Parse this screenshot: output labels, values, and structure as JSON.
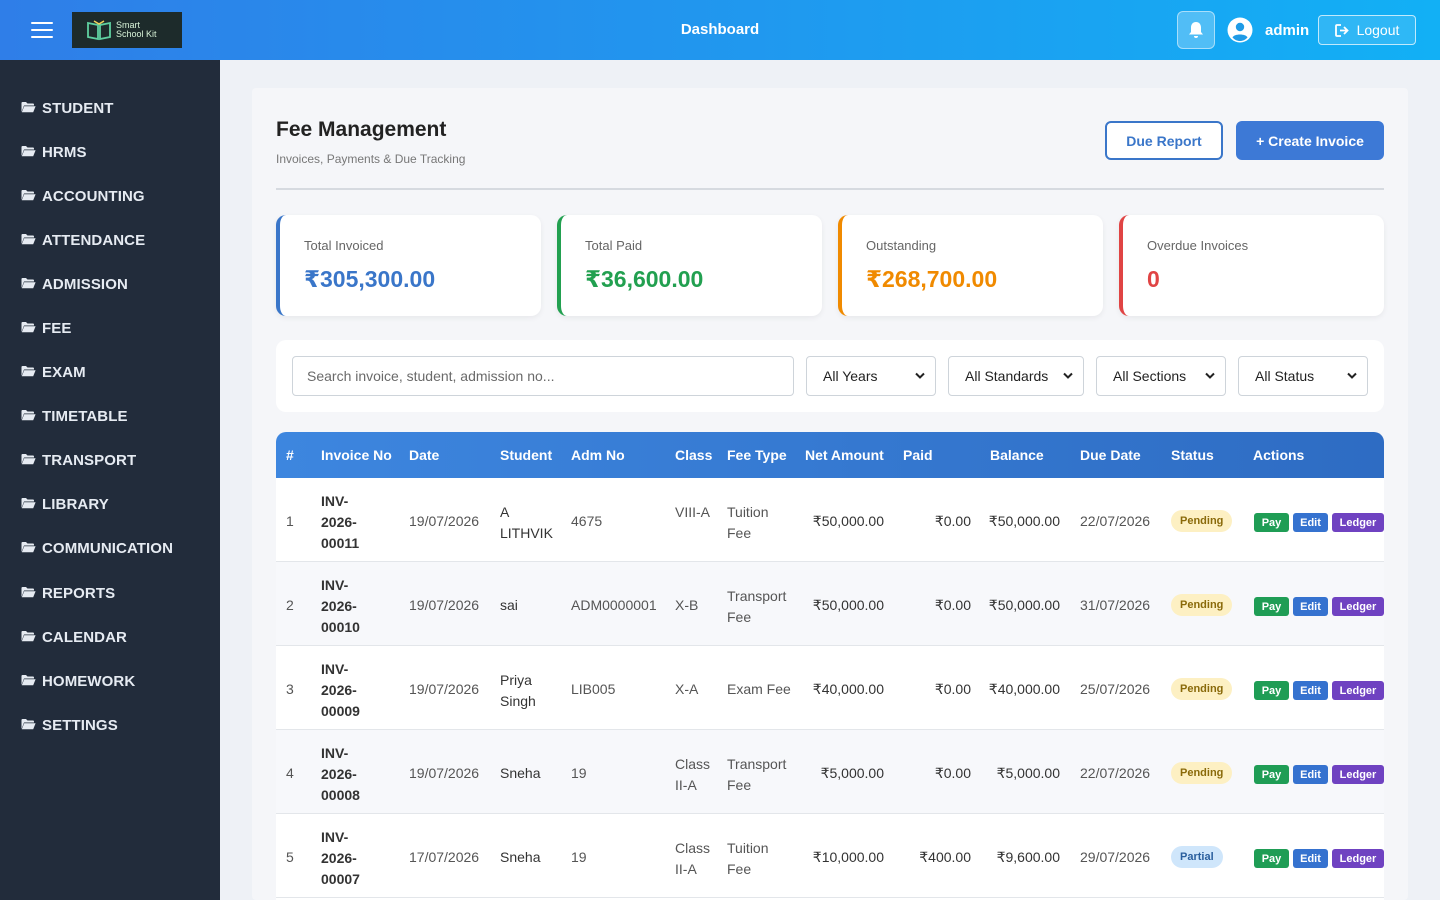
{
  "header": {
    "logo_line1": "Smart",
    "logo_line2": "School Kit",
    "title": "Dashboard",
    "user_name": "admin",
    "logout_label": "Logout"
  },
  "sidebar": {
    "items": [
      {
        "label": "STUDENT"
      },
      {
        "label": "HRMS"
      },
      {
        "label": "ACCOUNTING"
      },
      {
        "label": "ATTENDANCE"
      },
      {
        "label": "ADMISSION"
      },
      {
        "label": "FEE"
      },
      {
        "label": "EXAM"
      },
      {
        "label": "TIMETABLE"
      },
      {
        "label": "TRANSPORT"
      },
      {
        "label": "LIBRARY"
      },
      {
        "label": "COMMUNICATION"
      },
      {
        "label": "REPORTS"
      },
      {
        "label": "CALENDAR"
      },
      {
        "label": "HOMEWORK"
      },
      {
        "label": "SETTINGS"
      }
    ]
  },
  "page": {
    "title": "Fee Management",
    "subtitle": "Invoices, Payments & Due Tracking",
    "due_report_label": "Due Report",
    "create_invoice_label": "+ Create Invoice"
  },
  "stats": [
    {
      "label": "Total Invoiced",
      "value": "₹305,300.00",
      "color": "#3a76c9"
    },
    {
      "label": "Total Paid",
      "value": "₹36,600.00",
      "color": "#22a050"
    },
    {
      "label": "Outstanding",
      "value": "₹268,700.00",
      "color": "#f08a00"
    },
    {
      "label": "Overdue Invoices",
      "value": "0",
      "color": "#e04444"
    }
  ],
  "filters": {
    "search_placeholder": "Search invoice, student, admission no...",
    "year": "All Years",
    "standard": "All Standards",
    "section": "All Sections",
    "status": "All Status"
  },
  "table": {
    "headers": {
      "num": "#",
      "invoice_no": "Invoice No",
      "date": "Date",
      "student": "Student",
      "adm_no": "Adm No",
      "class": "Class",
      "fee_type": "Fee Type",
      "net_amount": "Net Amount",
      "paid": "Paid",
      "balance": "Balance",
      "due_date": "Due Date",
      "status": "Status",
      "actions": "Actions"
    },
    "actions": {
      "pay": "Pay",
      "edit": "Edit",
      "ledger": "Ledger"
    },
    "rows": [
      {
        "num": "1",
        "inv1": "INV-",
        "inv2": "2026-",
        "inv3": "00011",
        "date": "19/07/2026",
        "student": "A LITHVIK",
        "adm": "4675",
        "class": "VIII-A",
        "fee": "Tuition Fee",
        "net": "₹50,000.00",
        "paid": "₹0.00",
        "balance": "₹50,000.00",
        "due": "22/07/2026",
        "status": "Pending"
      },
      {
        "num": "2",
        "inv1": "INV-",
        "inv2": "2026-",
        "inv3": "00010",
        "date": "19/07/2026",
        "student": "sai",
        "adm": "ADM0000001",
        "class": "X-B",
        "fee": "Transport Fee",
        "net": "₹50,000.00",
        "paid": "₹0.00",
        "balance": "₹50,000.00",
        "due": "31/07/2026",
        "status": "Pending"
      },
      {
        "num": "3",
        "inv1": "INV-",
        "inv2": "2026-",
        "inv3": "00009",
        "date": "19/07/2026",
        "student": "Priya Singh",
        "adm": "LIB005",
        "class": "X-A",
        "fee": "Exam Fee",
        "net": "₹40,000.00",
        "paid": "₹0.00",
        "balance": "₹40,000.00",
        "due": "25/07/2026",
        "status": "Pending"
      },
      {
        "num": "4",
        "inv1": "INV-",
        "inv2": "2026-",
        "inv3": "00008",
        "date": "19/07/2026",
        "student": "Sneha",
        "adm": "19",
        "class": "Class II-A",
        "fee": "Transport Fee",
        "net": "₹5,000.00",
        "paid": "₹0.00",
        "balance": "₹5,000.00",
        "due": "22/07/2026",
        "status": "Pending"
      },
      {
        "num": "5",
        "inv1": "INV-",
        "inv2": "2026-",
        "inv3": "00007",
        "date": "17/07/2026",
        "student": "Sneha",
        "adm": "19",
        "class": "Class II-A",
        "fee": "Tuition Fee",
        "net": "₹10,000.00",
        "paid": "₹400.00",
        "balance": "₹9,600.00",
        "due": "29/07/2026",
        "status": "Partial"
      }
    ]
  }
}
